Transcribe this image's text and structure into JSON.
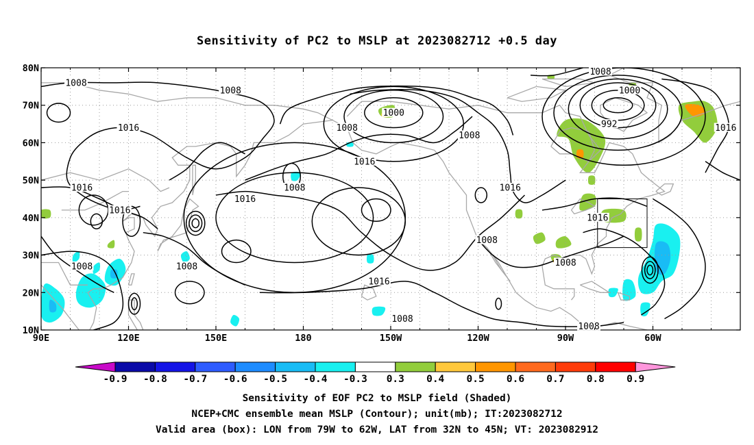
{
  "title": "Sensitivity of PC2 to MSLP at 2023082712 +0.5 day",
  "map": {
    "lat_ticks": [
      "80N",
      "70N",
      "60N",
      "50N",
      "40N",
      "30N",
      "20N",
      "10N"
    ],
    "lon_ticks": [
      "90E",
      "120E",
      "150E",
      "180",
      "150W",
      "120W",
      "90W",
      "60W"
    ],
    "valid_box": {
      "lon_west": -79,
      "lon_east": -62,
      "lat_south": 32,
      "lat_north": 45
    },
    "contour_labels": [
      {
        "text": "1008",
        "lon": 102,
        "lat": 76
      },
      {
        "text": "1008",
        "lon": 155,
        "lat": 74
      },
      {
        "text": "1016",
        "lon": 120,
        "lat": 64
      },
      {
        "text": "1000",
        "lon": 211,
        "lat": 68
      },
      {
        "text": "1008",
        "lon": 195,
        "lat": 64
      },
      {
        "text": "1008",
        "lon": 237,
        "lat": 62
      },
      {
        "text": "1008",
        "lon": 282,
        "lat": 79
      },
      {
        "text": "1000",
        "lon": 292,
        "lat": 74
      },
      {
        "text": "992",
        "lon": 285,
        "lat": 65
      },
      {
        "text": "1016",
        "lon": 325,
        "lat": 64
      },
      {
        "text": "1016",
        "lon": 201,
        "lat": 55
      },
      {
        "text": "1008",
        "lon": 177,
        "lat": 48
      },
      {
        "text": "1016",
        "lon": 104,
        "lat": 48
      },
      {
        "text": "1016",
        "lon": 117,
        "lat": 42
      },
      {
        "text": "1016",
        "lon": 160,
        "lat": 45
      },
      {
        "text": "1016",
        "lon": 251,
        "lat": 48
      },
      {
        "text": "1016",
        "lon": 281,
        "lat": 40
      },
      {
        "text": "1008",
        "lon": 243,
        "lat": 34
      },
      {
        "text": "1008",
        "lon": 270,
        "lat": 28
      },
      {
        "text": "1008",
        "lon": 104,
        "lat": 27
      },
      {
        "text": "1008",
        "lon": 140,
        "lat": 27
      },
      {
        "text": "1016",
        "lon": 206,
        "lat": 23
      },
      {
        "text": "1008",
        "lon": 214,
        "lat": 13
      },
      {
        "text": "1008",
        "lon": 278,
        "lat": 11
      }
    ]
  },
  "colorbar": {
    "labels": [
      "-0.9",
      "-0.8",
      "-0.7",
      "-0.6",
      "-0.5",
      "-0.4",
      "-0.3",
      "0.3",
      "0.4",
      "0.5",
      "0.6",
      "0.7",
      "0.8",
      "0.9"
    ],
    "colors": [
      "#0a0aa8",
      "#1414e6",
      "#2e5cff",
      "#1e8cff",
      "#19bcf5",
      "#19f0f0",
      "#ffffff",
      "#92cd3c",
      "#ffc83c",
      "#ff9600",
      "#ff6a1e",
      "#ff3c0a",
      "#ff0000"
    ],
    "end_low_color": "#c80ac8",
    "end_high_color": "#ff96dc"
  },
  "captions": {
    "line1": "Sensitivity of EOF PC2 to MSLP field (Shaded)",
    "line2": "NCEP+CMC ensemble mean MSLP (Contour); unit(mb); IT:2023082712",
    "line3": "Valid area (box): LON from 79W to 62W, LAT from 32N to 45N; VT: 2023082912"
  }
}
